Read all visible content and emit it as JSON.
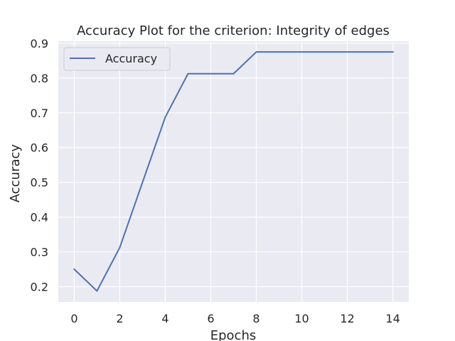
{
  "chart_data": {
    "type": "line",
    "title": "Accuracy Plot for the criterion: Integrity of edges",
    "xlabel": "Epochs",
    "ylabel": "Accuracy",
    "x": [
      0,
      1,
      2,
      3,
      4,
      5,
      6,
      7,
      8,
      9,
      10,
      11,
      12,
      13,
      14
    ],
    "series": [
      {
        "name": "Accuracy",
        "color": "#4c72b0",
        "values": [
          0.25,
          0.1875,
          0.3125,
          0.5,
          0.6875,
          0.8125,
          0.8125,
          0.8125,
          0.875,
          0.875,
          0.875,
          0.875,
          0.875,
          0.875,
          0.875
        ]
      }
    ],
    "xlim": [
      -0.7,
      14.7
    ],
    "ylim": [
      0.156,
      0.906
    ],
    "xticks": [
      0,
      2,
      4,
      6,
      8,
      10,
      12,
      14
    ],
    "yticks": [
      0.2,
      0.3,
      0.4,
      0.5,
      0.6,
      0.7,
      0.8,
      0.9
    ],
    "grid": true,
    "legend_position": "top-left",
    "background_color": "#eaeaf2",
    "grid_color": "#ffffff"
  }
}
